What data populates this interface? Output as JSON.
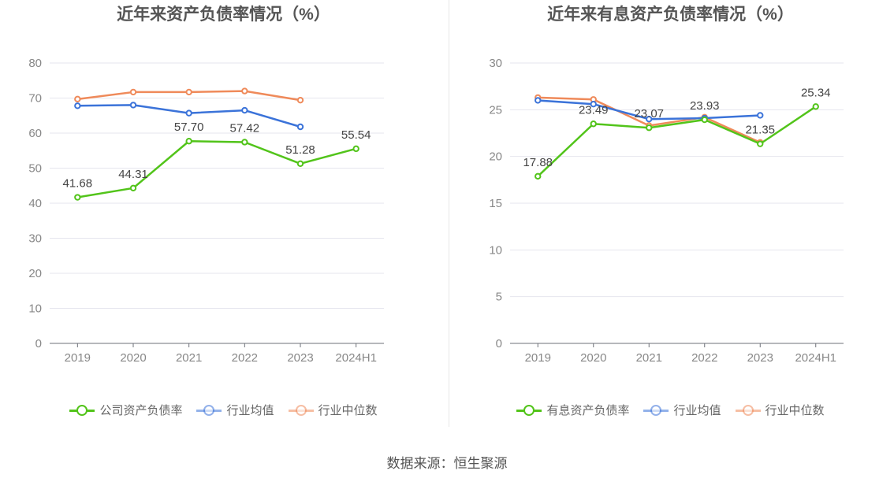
{
  "source": "数据来源：恒生聚源",
  "chart_data": [
    {
      "type": "line",
      "title": "近年来资产负债率情况（%）",
      "categories": [
        "2019",
        "2020",
        "2021",
        "2022",
        "2023",
        "2024H1"
      ],
      "ylim": [
        0,
        80
      ],
      "yticks": [
        0,
        10,
        20,
        30,
        40,
        50,
        60,
        70,
        80
      ],
      "grid": true,
      "legend_position": "bottom",
      "series": [
        {
          "name": "公司资产负债率",
          "color": "#52c41a",
          "values": [
            41.68,
            44.31,
            57.7,
            57.42,
            51.28,
            55.54
          ],
          "labels": [
            "41.68",
            "44.31",
            "57.70",
            "57.42",
            "51.28",
            "55.54"
          ]
        },
        {
          "name": "行业均值",
          "color": "#3b73d9",
          "values": [
            67.8,
            68.0,
            65.7,
            66.5,
            61.8,
            null
          ]
        },
        {
          "name": "行业中位数",
          "color": "#ef8a5a",
          "values": [
            69.7,
            71.7,
            71.7,
            72.0,
            69.4,
            null
          ]
        }
      ]
    },
    {
      "type": "line",
      "title": "近年来有息资产负债率情况（%）",
      "categories": [
        "2019",
        "2020",
        "2021",
        "2022",
        "2023",
        "2024H1"
      ],
      "ylim": [
        0,
        30
      ],
      "yticks": [
        0,
        5,
        10,
        15,
        20,
        25,
        30
      ],
      "grid": true,
      "legend_position": "bottom",
      "series": [
        {
          "name": "有息资产负债率",
          "color": "#52c41a",
          "values": [
            17.88,
            23.49,
            23.07,
            23.93,
            21.35,
            25.34
          ],
          "labels": [
            "17.88",
            "23.49",
            "23.07",
            "23.93",
            "21.35",
            "25.34"
          ]
        },
        {
          "name": "行业均值",
          "color": "#3b73d9",
          "values": [
            26.0,
            25.6,
            24.0,
            24.1,
            24.4,
            null
          ]
        },
        {
          "name": "行业中位数",
          "color": "#ef8a5a",
          "values": [
            26.3,
            26.1,
            23.3,
            24.2,
            21.5,
            null
          ]
        }
      ]
    }
  ]
}
